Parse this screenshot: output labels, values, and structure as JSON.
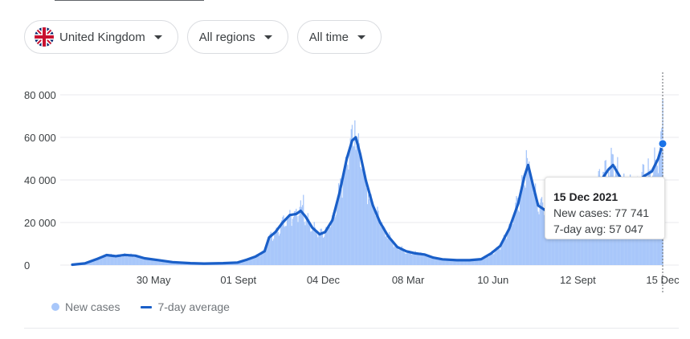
{
  "filters": {
    "country": {
      "label": "United Kingdom",
      "icon": "uk-flag-icon"
    },
    "region": {
      "label": "All regions"
    },
    "period": {
      "label": "All time"
    }
  },
  "tooltip": {
    "date": "15 Dec 2021",
    "new_cases_label": "New cases: 77 741",
    "avg_label": "7-day avg: 57 047"
  },
  "legend": {
    "new_cases": "New cases",
    "avg": "7-day average"
  },
  "colors": {
    "bars": "#a8c7fa",
    "line": "#1a5fc8",
    "grid": "#e8eaed"
  },
  "chart_data": {
    "type": "bar",
    "ylim": [
      0,
      80000
    ],
    "yticks": [
      0,
      20000,
      40000,
      60000,
      80000
    ],
    "ytick_labels": [
      "0",
      "20 000",
      "40 000",
      "60 000",
      "80 000"
    ],
    "x_start": "2020-03-01",
    "x_end": "2021-12-15",
    "xticks": [
      {
        "date": "2020-05-30",
        "label": "30 May"
      },
      {
        "date": "2020-09-01",
        "label": "01 Sept"
      },
      {
        "date": "2020-12-04",
        "label": "04 Dec"
      },
      {
        "date": "2021-03-08",
        "label": "08 Mar"
      },
      {
        "date": "2021-06-10",
        "label": "10 Jun"
      },
      {
        "date": "2021-09-12",
        "label": "12 Sept"
      },
      {
        "date": "2021-12-15",
        "label": "15 Dec"
      }
    ],
    "series": [
      {
        "name": "7-day average",
        "kind": "line",
        "points": [
          [
            "2020-03-01",
            200
          ],
          [
            "2020-03-15",
            800
          ],
          [
            "2020-03-29",
            3000
          ],
          [
            "2020-04-08",
            4700
          ],
          [
            "2020-04-18",
            4200
          ],
          [
            "2020-04-28",
            4800
          ],
          [
            "2020-05-10",
            4400
          ],
          [
            "2020-05-20",
            3200
          ],
          [
            "2020-06-05",
            2300
          ],
          [
            "2020-06-20",
            1400
          ],
          [
            "2020-07-10",
            900
          ],
          [
            "2020-07-25",
            700
          ],
          [
            "2020-08-15",
            900
          ],
          [
            "2020-08-31",
            1200
          ],
          [
            "2020-09-10",
            2500
          ],
          [
            "2020-09-20",
            4000
          ],
          [
            "2020-09-30",
            6500
          ],
          [
            "2020-10-05",
            13000
          ],
          [
            "2020-10-12",
            15500
          ],
          [
            "2020-10-20",
            20000
          ],
          [
            "2020-10-28",
            23500
          ],
          [
            "2020-11-04",
            24000
          ],
          [
            "2020-11-09",
            25500
          ],
          [
            "2020-11-14",
            23000
          ],
          [
            "2020-11-22",
            17500
          ],
          [
            "2020-11-30",
            14500
          ],
          [
            "2020-12-06",
            15500
          ],
          [
            "2020-12-14",
            21000
          ],
          [
            "2020-12-22",
            34000
          ],
          [
            "2020-12-30",
            50000
          ],
          [
            "2021-01-05",
            58500
          ],
          [
            "2021-01-09",
            60000
          ],
          [
            "2021-01-14",
            52000
          ],
          [
            "2021-01-20",
            40000
          ],
          [
            "2021-01-28",
            28000
          ],
          [
            "2021-02-05",
            20000
          ],
          [
            "2021-02-14",
            13500
          ],
          [
            "2021-02-24",
            8500
          ],
          [
            "2021-03-06",
            6500
          ],
          [
            "2021-03-16",
            5500
          ],
          [
            "2021-03-26",
            5000
          ],
          [
            "2021-04-05",
            3500
          ],
          [
            "2021-04-15",
            2700
          ],
          [
            "2021-05-01",
            2300
          ],
          [
            "2021-05-15",
            2300
          ],
          [
            "2021-05-28",
            2800
          ],
          [
            "2021-06-08",
            5500
          ],
          [
            "2021-06-18",
            9000
          ],
          [
            "2021-06-28",
            17000
          ],
          [
            "2021-07-08",
            29000
          ],
          [
            "2021-07-15",
            42000
          ],
          [
            "2021-07-19",
            47000
          ],
          [
            "2021-07-24",
            38000
          ],
          [
            "2021-07-30",
            28000
          ],
          [
            "2021-08-06",
            26000
          ],
          [
            "2021-08-20",
            30000
          ],
          [
            "2021-09-01",
            34000
          ],
          [
            "2021-09-10",
            37000
          ],
          [
            "2021-09-20",
            32000
          ],
          [
            "2021-09-30",
            36000
          ],
          [
            "2021-10-08",
            40000
          ],
          [
            "2021-10-16",
            45000
          ],
          [
            "2021-10-21",
            47000
          ],
          [
            "2021-10-28",
            42000
          ],
          [
            "2021-11-05",
            35000
          ],
          [
            "2021-11-15",
            38000
          ],
          [
            "2021-11-25",
            42000
          ],
          [
            "2021-12-03",
            44000
          ],
          [
            "2021-12-10",
            50000
          ],
          [
            "2021-12-15",
            57047
          ]
        ]
      },
      {
        "name": "New cases",
        "kind": "bars",
        "note": "daily values follow the 7-day average with weekly variation",
        "peaks": [
          [
            "2020-11-12",
            33000
          ],
          [
            "2021-01-08",
            68000
          ],
          [
            "2021-07-17",
            54000
          ],
          [
            "2021-10-21",
            52000
          ],
          [
            "2021-12-15",
            77741
          ]
        ]
      }
    ],
    "highlight": {
      "date": "2021-12-15",
      "new_cases": 77741,
      "avg": 57047
    }
  }
}
